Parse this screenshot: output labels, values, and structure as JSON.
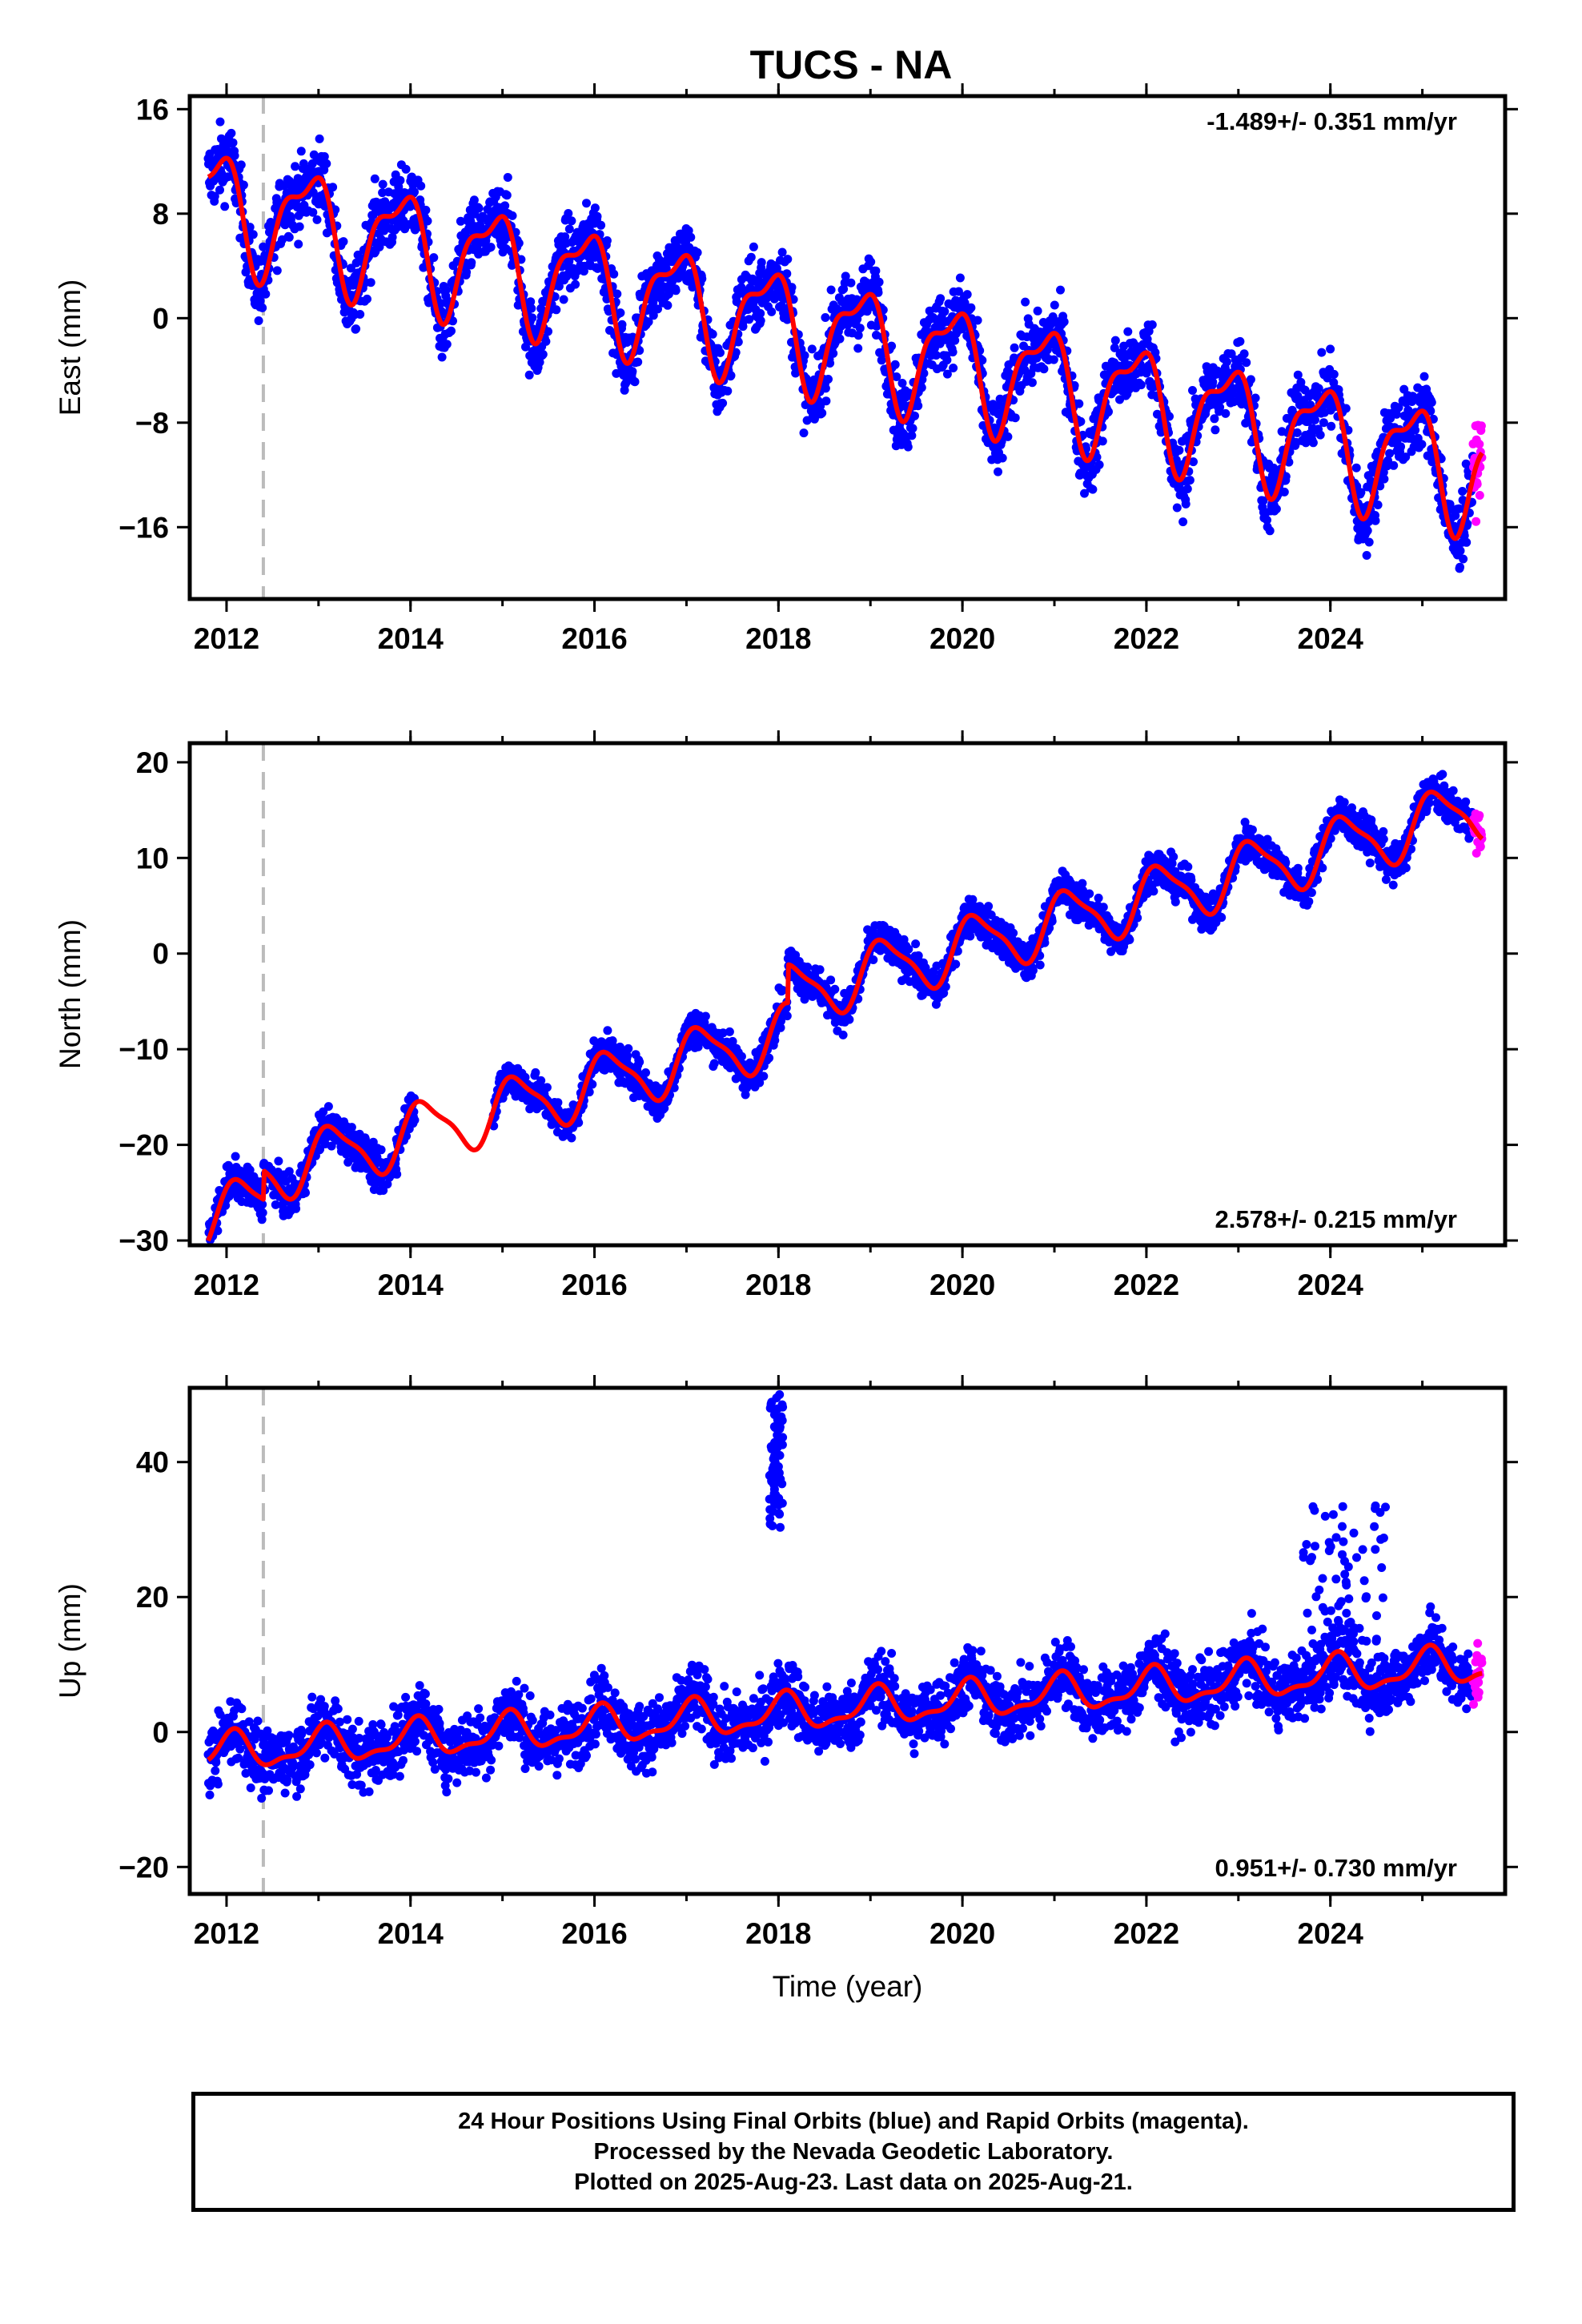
{
  "title": "TUCS - NA",
  "colors": {
    "final_orbits": "#0000ff",
    "rapid_orbits": "#ff00ff",
    "model": "#ff0000",
    "event_line": "#bbbbbb",
    "frame": "#000000"
  },
  "chart_data": [
    {
      "type": "scatter",
      "component": "east",
      "ylabel": "East (mm)",
      "xlabel": "",
      "xlim": [
        2011.6,
        2025.9
      ],
      "ylim": [
        -21.5,
        17.0
      ],
      "xticks": [
        "2012",
        "2014",
        "2016",
        "2018",
        "2020",
        "2022",
        "2024"
      ],
      "yticks": [
        "16",
        "8",
        "0",
        "−8",
        "−16"
      ],
      "ytick_values": [
        16,
        8,
        0,
        -8,
        -16
      ],
      "rate_label": "-1.489+/- 0.351 mm/yr",
      "rate_position": "top-right",
      "event_line_year": 2012.4,
      "data_start": 2011.8,
      "rapid_start": 2025.55,
      "data_end": 2025.65,
      "model": {
        "trend_anchor": [
          2012.0,
          8.5
        ],
        "rate_mm_per_yr": -1.489,
        "annual_amplitude": 4.0,
        "annual_phase": 2.3,
        "semiannual_amplitude": 1.6,
        "semiannual_phase": 0.5,
        "noise": 2.0,
        "offsets": []
      },
      "gaps": [],
      "outliers": []
    },
    {
      "type": "scatter",
      "component": "north",
      "ylabel": "North (mm)",
      "xlabel": "",
      "xlim": [
        2011.6,
        2025.9
      ],
      "ylim": [
        -30.5,
        22.0
      ],
      "xticks": [
        "2012",
        "2014",
        "2016",
        "2018",
        "2020",
        "2022",
        "2024"
      ],
      "yticks": [
        "20",
        "10",
        "0",
        "−10",
        "−20",
        "−30"
      ],
      "ytick_values": [
        20,
        10,
        0,
        -10,
        -20,
        -30
      ],
      "rate_label": "2.578+/- 0.215 mm/yr",
      "rate_position": "bottom-right",
      "event_line_year": 2012.4,
      "data_start": 2011.8,
      "rapid_start": 2025.55,
      "data_end": 2025.65,
      "model": {
        "trend_anchor": [
          2012.0,
          -27.0
        ],
        "rate_mm_per_yr": 2.578,
        "annual_amplitude": 3.0,
        "annual_phase": 0.6,
        "semiannual_amplitude": 0.8,
        "semiannual_phase": 1.5,
        "noise": 1.4,
        "offsets": [
          [
            2012.4,
            3.0
          ],
          [
            2018.1,
            4.0
          ]
        ]
      },
      "gaps": [
        [
          2014.05,
          2014.9
        ],
        [
          2018.05,
          2018.08
        ]
      ],
      "outliers": []
    },
    {
      "type": "scatter",
      "component": "up",
      "ylabel": "Up (mm)",
      "xlabel": "Time (year)",
      "xlim": [
        2011.6,
        2025.9
      ],
      "ylim": [
        -24.0,
        51.0
      ],
      "xticks": [
        "2012",
        "2014",
        "2016",
        "2018",
        "2020",
        "2022",
        "2024"
      ],
      "yticks": [
        "40",
        "20",
        "0",
        "−20"
      ],
      "ytick_values": [
        40,
        20,
        0,
        -20
      ],
      "rate_label": "0.951+/- 0.730 mm/yr",
      "rate_position": "bottom-right",
      "event_line_year": 2012.4,
      "data_start": 2011.8,
      "rapid_start": 2025.55,
      "data_end": 2025.65,
      "model": {
        "trend_anchor": [
          2012.0,
          -3.0
        ],
        "rate_mm_per_yr": 0.951,
        "annual_amplitude": 2.5,
        "annual_phase": 1.2,
        "semiannual_amplitude": 1.0,
        "semiannual_phase": 0.3,
        "noise": 3.5,
        "offsets": []
      },
      "gaps": [],
      "outliers": [
        {
          "x_range": [
            2017.9,
            2018.05
          ],
          "y_range": [
            30,
            50
          ]
        },
        {
          "x_range": [
            2023.7,
            2024.6
          ],
          "y_range": [
            10,
            34
          ]
        }
      ]
    }
  ],
  "caption": {
    "line1": "24 Hour Positions Using Final Orbits (blue) and Rapid Orbits (magenta).",
    "line2": "Processed by the Nevada Geodetic Laboratory.",
    "line3": "Plotted on 2025-Aug-23. Last data on 2025-Aug-21."
  }
}
